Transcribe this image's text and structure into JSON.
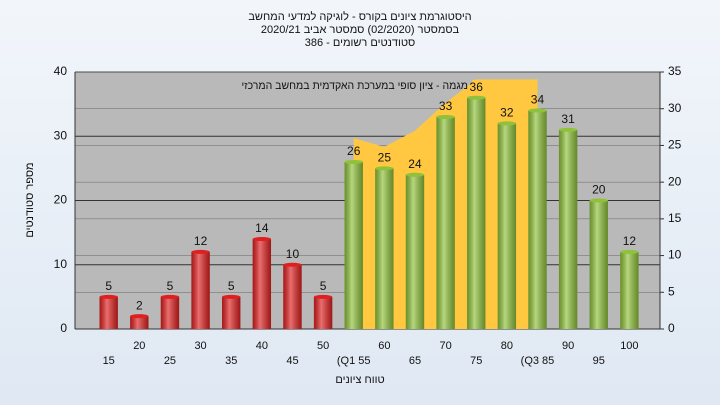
{
  "chart_data": {
    "type": "bar",
    "title": [
      "היסטוגרמת ציונים בקורס - לוגיקה למדעי המחשב",
      "בסמסטר  (02/2020)  סמסטר אביב 2020/21",
      "סטודנטים רשומים - 386"
    ],
    "x_label": "טווח ציונים",
    "y_label": "מספר סטודנטים",
    "categories": [
      "15",
      "20",
      "25",
      "30",
      "35",
      "40",
      "45",
      "50",
      "(Q1 55",
      "60",
      "65",
      "70",
      "75",
      "80",
      "(Q3 85",
      "90",
      "95",
      "100"
    ],
    "values": [
      5,
      2,
      5,
      12,
      5,
      14,
      10,
      5,
      26,
      25,
      24,
      33,
      36,
      32,
      34,
      31,
      20,
      12
    ],
    "colors": [
      "#e02020",
      "#e02020",
      "#e02020",
      "#e02020",
      "#e02020",
      "#e02020",
      "#e02020",
      "#e02020",
      "#8fc23a",
      "#8fc23a",
      "#8fc23a",
      "#8fc23a",
      "#8fc23a",
      "#8fc23a",
      "#8fc23a",
      "#8fc23a",
      "#8fc23a",
      "#8fc23a"
    ],
    "ylim": [
      0,
      40
    ],
    "yticks": [
      0,
      10,
      20,
      30,
      40
    ],
    "y2lim": [
      0,
      35
    ],
    "y2ticks": [
      0,
      5,
      10,
      15,
      20,
      25,
      30,
      35
    ],
    "series": [
      {
        "name": "מגמה - ציון סופי במערכת האקדמית במחשב המרכזי",
        "color": "#ffc840",
        "axis": "y2",
        "type": "area",
        "values": [
          null,
          null,
          null,
          null,
          null,
          null,
          null,
          null,
          26,
          24.8,
          27,
          30.8,
          34,
          34,
          34,
          null,
          null,
          null
        ]
      }
    ],
    "grid": true
  }
}
